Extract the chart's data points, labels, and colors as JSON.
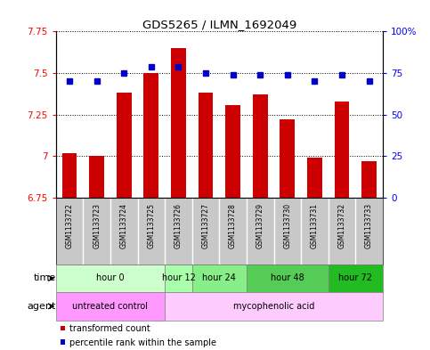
{
  "title": "GDS5265 / ILMN_1692049",
  "samples": [
    "GSM1133722",
    "GSM1133723",
    "GSM1133724",
    "GSM1133725",
    "GSM1133726",
    "GSM1133727",
    "GSM1133728",
    "GSM1133729",
    "GSM1133730",
    "GSM1133731",
    "GSM1133732",
    "GSM1133733"
  ],
  "bar_values": [
    7.02,
    7.0,
    7.38,
    7.5,
    7.65,
    7.38,
    7.31,
    7.37,
    7.22,
    6.99,
    7.33,
    6.97
  ],
  "percentile_values": [
    70,
    70,
    75,
    79,
    79,
    75,
    74,
    74,
    74,
    70,
    74,
    70
  ],
  "ylim_left": [
    6.75,
    7.75
  ],
  "ylim_right": [
    0,
    100
  ],
  "yticks_left": [
    6.75,
    7.0,
    7.25,
    7.5,
    7.75
  ],
  "yticks_left_labels": [
    "6.75",
    "7",
    "7.25",
    "7.5",
    "7.75"
  ],
  "yticks_right": [
    0,
    25,
    50,
    75,
    100
  ],
  "yticks_right_labels": [
    "0",
    "25",
    "50",
    "75",
    "100%"
  ],
  "bar_color": "#cc0000",
  "dot_color": "#0000cc",
  "bar_bottom": 6.75,
  "time_groups": [
    {
      "label": "hour 0",
      "start": 0,
      "end": 3,
      "color": "#ccffcc"
    },
    {
      "label": "hour 12",
      "start": 4,
      "end": 4,
      "color": "#aaffaa"
    },
    {
      "label": "hour 24",
      "start": 5,
      "end": 6,
      "color": "#88ee88"
    },
    {
      "label": "hour 48",
      "start": 7,
      "end": 9,
      "color": "#55cc55"
    },
    {
      "label": "hour 72",
      "start": 10,
      "end": 11,
      "color": "#22bb22"
    }
  ],
  "agent_groups": [
    {
      "label": "untreated control",
      "start": 0,
      "end": 3,
      "color": "#ff99ff"
    },
    {
      "label": "mycophenolic acid",
      "start": 4,
      "end": 11,
      "color": "#ffccff"
    }
  ],
  "background_sample": "#c8c8c8",
  "legend_red_label": "transformed count",
  "legend_blue_label": "percentile rank within the sample"
}
